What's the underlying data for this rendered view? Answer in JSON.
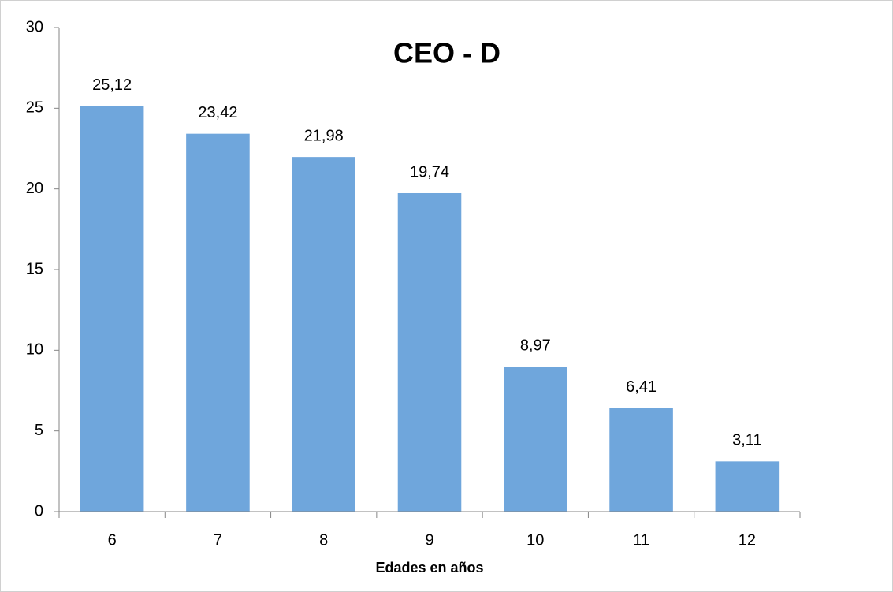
{
  "chart_data": {
    "type": "bar",
    "title": "CEO - D",
    "x_label": "Edades en años",
    "categories": [
      "6",
      "7",
      "8",
      "9",
      "10",
      "11",
      "12"
    ],
    "values": [
      25.12,
      23.42,
      21.98,
      19.74,
      8.97,
      6.41,
      3.11
    ],
    "value_labels": [
      "25,12",
      "23,42",
      "21,98",
      "19,74",
      "8,97",
      "6,41",
      "3,11"
    ],
    "color": "#6fa6dc",
    "ylim": [
      0,
      30
    ],
    "yticks": [
      0,
      5,
      10,
      15,
      20,
      25,
      30
    ],
    "grid": false
  }
}
